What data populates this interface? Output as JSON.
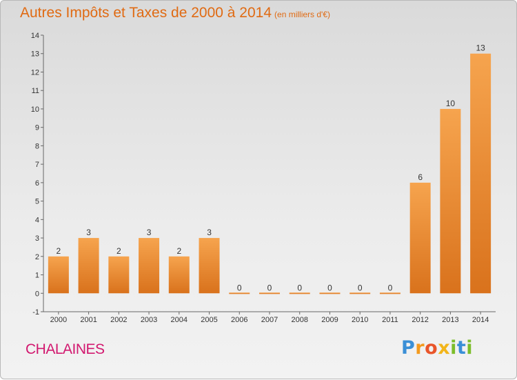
{
  "title": "Autres Impôts et Taxes de 2000 à 2014",
  "subtitle": "(en milliers d'€)",
  "place": "CHALAINES",
  "logo": {
    "text": "Proxiti"
  },
  "colors": {
    "bar_light": "#f6a44e",
    "bar_dark": "#d9721c",
    "title": "#e06a12",
    "place": "#d2186f"
  },
  "chart_data": {
    "type": "bar",
    "title": "Autres Impôts et Taxes de 2000 à 2014",
    "subtitle": "(en milliers d'€)",
    "categories": [
      "2000",
      "2001",
      "2002",
      "2003",
      "2004",
      "2005",
      "2006",
      "2007",
      "2008",
      "2009",
      "2010",
      "2011",
      "2012",
      "2013",
      "2014"
    ],
    "values": [
      2,
      3,
      2,
      3,
      2,
      3,
      0,
      0,
      0,
      0,
      0,
      0,
      6,
      10,
      13
    ],
    "ylim": [
      -1,
      14
    ],
    "yticks": [
      "-1",
      "0",
      "1",
      "2",
      "3",
      "4",
      "5",
      "6",
      "7",
      "8",
      "9",
      "10",
      "11",
      "12",
      "13",
      "14"
    ],
    "grid": false,
    "legend": "none"
  }
}
